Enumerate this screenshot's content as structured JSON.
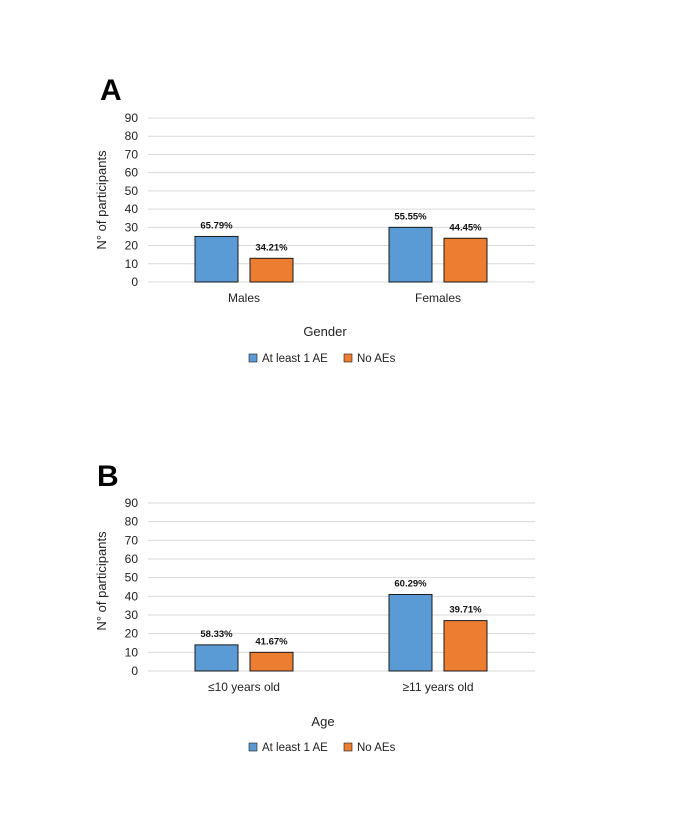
{
  "colors": {
    "series1": "#5B9BD5",
    "series2": "#ED7D31",
    "bar_edge": "#1a1a1a",
    "grid": "#D9D9D9"
  },
  "chart_data": [
    {
      "panel": "A",
      "type": "bar",
      "categories": [
        "Males",
        "Females"
      ],
      "series": [
        {
          "name": "At least 1 AE",
          "values": [
            25,
            30
          ],
          "labels": [
            "65.79%",
            "55.55%"
          ]
        },
        {
          "name": "No AEs",
          "values": [
            13,
            24
          ],
          "labels": [
            "34.21%",
            "44.45%"
          ]
        }
      ],
      "xlabel": "Gender",
      "ylabel": "N° of participants",
      "ylim": [
        0,
        90
      ],
      "yticks": [
        0,
        10,
        20,
        30,
        40,
        50,
        60,
        70,
        80,
        90
      ],
      "grid": true,
      "legend": "bottom"
    },
    {
      "panel": "B",
      "type": "bar",
      "categories": [
        "≤10 years old",
        "≥11 years old"
      ],
      "series": [
        {
          "name": "At least 1 AE",
          "values": [
            14,
            41
          ],
          "labels": [
            "58.33%",
            "60.29%"
          ]
        },
        {
          "name": "No AEs",
          "values": [
            10,
            27
          ],
          "labels": [
            "41.67%",
            "39.71%"
          ]
        }
      ],
      "xlabel": "Age",
      "ylabel": "N° of participants",
      "ylim": [
        0,
        90
      ],
      "yticks": [
        0,
        10,
        20,
        30,
        40,
        50,
        60,
        70,
        80,
        90
      ],
      "grid": true,
      "legend": "bottom"
    }
  ]
}
